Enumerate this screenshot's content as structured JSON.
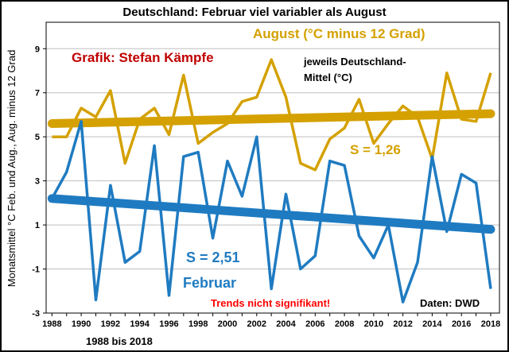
{
  "chart_data": {
    "type": "line",
    "title": "Deutschland: Februar viel variabler als August",
    "ylabel": "Monatsmittel °C Feb. und Aug., Aug. minus 12 Grad",
    "xlabel": "1988 bis 2018",
    "x": [
      1988,
      1989,
      1990,
      1991,
      1992,
      1993,
      1994,
      1995,
      1996,
      1997,
      1998,
      1999,
      2000,
      2001,
      2002,
      2003,
      2004,
      2005,
      2006,
      2007,
      2008,
      2009,
      2010,
      2011,
      2012,
      2013,
      2014,
      2015,
      2016,
      2017,
      2018
    ],
    "x_ticks": [
      1988,
      1990,
      1992,
      1994,
      1996,
      1998,
      2000,
      2002,
      2004,
      2006,
      2008,
      2010,
      2012,
      2014,
      2016,
      2018
    ],
    "y_ticks": [
      -3,
      -1,
      1,
      3,
      5,
      7,
      9
    ],
    "ylim": [
      -3,
      10.2
    ],
    "xlim": [
      1987.6,
      2018.6
    ],
    "series": [
      {
        "name": "August",
        "color": "#d4a100",
        "values": [
          5.0,
          5.0,
          6.3,
          5.9,
          7.1,
          3.8,
          5.8,
          6.3,
          5.1,
          7.8,
          4.7,
          5.2,
          5.6,
          6.6,
          6.8,
          8.5,
          6.8,
          3.8,
          3.5,
          4.9,
          5.4,
          6.7,
          4.7,
          5.6,
          6.4,
          5.9,
          4.0,
          7.9,
          5.8,
          5.7,
          7.9
        ]
      },
      {
        "name": "Februar",
        "color": "#1f7bc1",
        "values": [
          2.2,
          3.4,
          5.7,
          -2.4,
          2.8,
          -0.7,
          -0.2,
          4.6,
          -2.2,
          4.1,
          4.3,
          0.4,
          3.9,
          2.3,
          5.0,
          -1.9,
          2.4,
          -1.0,
          -0.4,
          3.9,
          3.7,
          0.5,
          -0.5,
          1.0,
          -2.5,
          -0.7,
          4.1,
          0.7,
          3.3,
          2.9,
          -1.9
        ]
      }
    ],
    "trends": [
      {
        "series": "August",
        "start": 5.6,
        "end": 6.05,
        "color": "#d4a100"
      },
      {
        "series": "Februar",
        "start": 2.2,
        "end": 0.8,
        "color": "#1f7bc1"
      }
    ],
    "grid": true,
    "annotations": {
      "author": "Grafik: Stefan Kämpfe",
      "august_label": "August (°C minus 12 Grad)",
      "mean_note_1": "jeweils Deutschland-",
      "mean_note_2": "Mittel (°C)",
      "s_august": "S = 1,26",
      "s_februar": "S = 2,51",
      "februar_label": "Februar",
      "trend_note": "Trends nicht signifikant!",
      "source": "Daten: DWD"
    }
  }
}
